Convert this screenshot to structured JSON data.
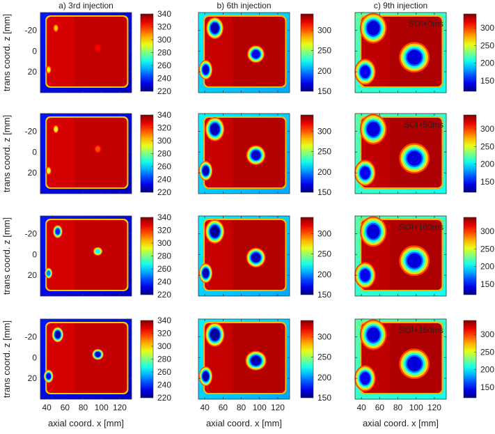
{
  "figure": {
    "ylabel": "trans coord. z [mm]",
    "xlabel": "axial coord. x [mm]"
  },
  "chart_data": {
    "type": "heatmap",
    "xlabel": "axial coord. x [mm]",
    "ylabel": "trans coord. z [mm]",
    "x_ticks": [
      40,
      60,
      80,
      100,
      120
    ],
    "x_tick_labels": [
      "40",
      "60",
      "80",
      "100",
      "120"
    ],
    "y_ticks": [
      -20,
      0,
      20
    ],
    "y_tick_labels": [
      "-20",
      "0",
      "20"
    ],
    "xlim": [
      33,
      133
    ],
    "ylim": [
      -37,
      40
    ],
    "y_reversed": true,
    "colormap": "jet",
    "columns": [
      {
        "title": "a) 3rd injection",
        "clim": [
          220,
          340
        ],
        "colorbar_ticks": [
          "340",
          "320",
          "300",
          "280",
          "260",
          "240",
          "220"
        ]
      },
      {
        "title": "b) 6th injection",
        "clim": [
          150,
          340
        ],
        "colorbar_ticks": [
          "300",
          "250",
          "200",
          "150"
        ]
      },
      {
        "title": "c) 9th injection",
        "clim": [
          120,
          340
        ],
        "colorbar_ticks": [
          "300",
          "250",
          "200",
          "150"
        ]
      }
    ],
    "rows": [
      {
        "time_label": "SOI+0ms"
      },
      {
        "time_label": "SOI+50ms"
      },
      {
        "time_label": "SOI+100ms"
      },
      {
        "time_label": "SOI+150ms"
      }
    ],
    "plate_region": {
      "x": [
        40,
        128
      ],
      "z": [
        -33,
        34
      ]
    },
    "cold_spots": [
      {
        "column": 0,
        "row": 0,
        "x": 50,
        "z": -22,
        "rx": 1.5,
        "rz": 2,
        "temp": 300
      },
      {
        "column": 0,
        "row": 0,
        "x": 42,
        "z": 18,
        "rx": 1.5,
        "rz": 2,
        "temp": 295
      },
      {
        "column": 0,
        "row": 0,
        "x": 96,
        "z": -3,
        "rx": 2,
        "rz": 2,
        "temp": 325
      },
      {
        "column": 0,
        "row": 1,
        "x": 50,
        "z": -22,
        "rx": 1.5,
        "rz": 2,
        "temp": 290
      },
      {
        "column": 0,
        "row": 1,
        "x": 42,
        "z": 18,
        "rx": 1.5,
        "rz": 2,
        "temp": 290
      },
      {
        "column": 0,
        "row": 1,
        "x": 96,
        "z": -3,
        "rx": 2,
        "rz": 2,
        "temp": 315
      },
      {
        "column": 0,
        "row": 2,
        "x": 52,
        "z": -22,
        "rx": 2.5,
        "rz": 3,
        "temp": 240
      },
      {
        "column": 0,
        "row": 2,
        "x": 42,
        "z": 18,
        "rx": 2,
        "rz": 2.5,
        "temp": 250
      },
      {
        "column": 0,
        "row": 2,
        "x": 96,
        "z": -3,
        "rx": 2.5,
        "rz": 2,
        "temp": 265
      },
      {
        "column": 0,
        "row": 3,
        "x": 52,
        "z": -22,
        "rx": 3,
        "rz": 3.5,
        "temp": 225
      },
      {
        "column": 0,
        "row": 3,
        "x": 42,
        "z": 18,
        "rx": 2.5,
        "rz": 3,
        "temp": 235
      },
      {
        "column": 0,
        "row": 3,
        "x": 96,
        "z": -3,
        "rx": 3,
        "rz": 2.5,
        "temp": 230
      },
      {
        "column": 1,
        "row": 0,
        "x": 51,
        "z": -22,
        "rx": 4.5,
        "rz": 5,
        "temp": 160
      },
      {
        "column": 1,
        "row": 0,
        "x": 41,
        "z": 18,
        "rx": 3.5,
        "rz": 4.5,
        "temp": 165
      },
      {
        "column": 1,
        "row": 0,
        "x": 96,
        "z": 3,
        "rx": 4.5,
        "rz": 4,
        "temp": 170
      },
      {
        "column": 1,
        "row": 1,
        "x": 51,
        "z": -22,
        "rx": 5,
        "rz": 5.5,
        "temp": 160
      },
      {
        "column": 1,
        "row": 1,
        "x": 41,
        "z": 18,
        "rx": 3.5,
        "rz": 4.5,
        "temp": 160
      },
      {
        "column": 1,
        "row": 1,
        "x": 96,
        "z": 3,
        "rx": 5,
        "rz": 4.5,
        "temp": 165
      },
      {
        "column": 1,
        "row": 2,
        "x": 51,
        "z": -22,
        "rx": 5,
        "rz": 5.5,
        "temp": 155
      },
      {
        "column": 1,
        "row": 2,
        "x": 41,
        "z": 18,
        "rx": 3.5,
        "rz": 4.5,
        "temp": 160
      },
      {
        "column": 1,
        "row": 2,
        "x": 96,
        "z": 3,
        "rx": 5,
        "rz": 4.5,
        "temp": 160
      },
      {
        "column": 1,
        "row": 3,
        "x": 51,
        "z": -22,
        "rx": 5,
        "rz": 5.5,
        "temp": 155
      },
      {
        "column": 1,
        "row": 3,
        "x": 41,
        "z": 18,
        "rx": 3.5,
        "rz": 4.5,
        "temp": 160
      },
      {
        "column": 1,
        "row": 3,
        "x": 96,
        "z": 3,
        "rx": 5.5,
        "rz": 4.5,
        "temp": 160
      },
      {
        "column": 2,
        "row": 0,
        "x": 53,
        "z": -22,
        "rx": 7,
        "rz": 7,
        "temp": 140
      },
      {
        "column": 2,
        "row": 0,
        "x": 44,
        "z": 20,
        "rx": 5.5,
        "rz": 6,
        "temp": 145
      },
      {
        "column": 2,
        "row": 0,
        "x": 98,
        "z": 6,
        "rx": 8,
        "rz": 7,
        "temp": 140
      },
      {
        "column": 2,
        "row": 1,
        "x": 53,
        "z": -22,
        "rx": 7,
        "rz": 7,
        "temp": 140
      },
      {
        "column": 2,
        "row": 1,
        "x": 44,
        "z": 20,
        "rx": 5.5,
        "rz": 6,
        "temp": 145
      },
      {
        "column": 2,
        "row": 1,
        "x": 98,
        "z": 6,
        "rx": 8,
        "rz": 7,
        "temp": 140
      },
      {
        "column": 2,
        "row": 2,
        "x": 53,
        "z": -22,
        "rx": 7,
        "rz": 7,
        "temp": 140
      },
      {
        "column": 2,
        "row": 2,
        "x": 44,
        "z": 20,
        "rx": 5.5,
        "rz": 6,
        "temp": 145
      },
      {
        "column": 2,
        "row": 2,
        "x": 98,
        "z": 6,
        "rx": 8,
        "rz": 7,
        "temp": 140
      },
      {
        "column": 2,
        "row": 3,
        "x": 53,
        "z": -22,
        "rx": 7,
        "rz": 7,
        "temp": 140
      },
      {
        "column": 2,
        "row": 3,
        "x": 44,
        "z": 20,
        "rx": 5.5,
        "rz": 6,
        "temp": 145
      },
      {
        "column": 2,
        "row": 3,
        "x": 98,
        "z": 6,
        "rx": 8,
        "rz": 7,
        "temp": 140
      }
    ],
    "plate_temp": [
      332,
      330,
      330
    ],
    "background_temp": [
      228,
      205,
      205
    ],
    "grid": false
  }
}
